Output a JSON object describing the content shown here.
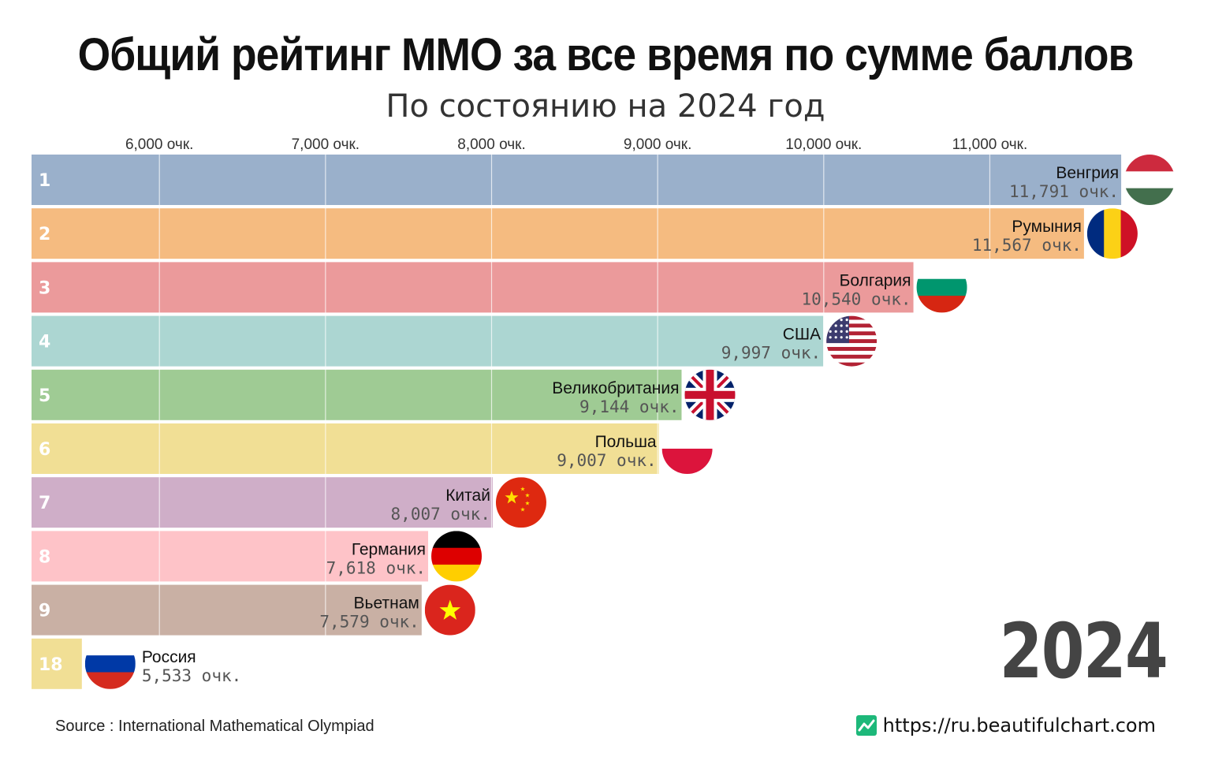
{
  "chart_data": {
    "type": "bar",
    "orientation": "horizontal",
    "title": "Общий рейтинг ММО за все время по сумме баллов",
    "subtitle": "По состоянию на 2024 год",
    "year": "2024",
    "unit": "очк.",
    "xlim": [
      5230,
      11990
    ],
    "ticks": [
      {
        "value": 6000,
        "label": "6,000 очк."
      },
      {
        "value": 7000,
        "label": "7,000 очк."
      },
      {
        "value": 8000,
        "label": "8,000 очк."
      },
      {
        "value": 9000,
        "label": "9,000 очк."
      },
      {
        "value": 10000,
        "label": "10,000 очк."
      },
      {
        "value": 11000,
        "label": "11,000 очк."
      }
    ],
    "bars": [
      {
        "rank": "1",
        "name": "Венгрия",
        "value": 11791,
        "value_label": "11,791 очк.",
        "color": "#9ab0cb",
        "flag": "hungary-flag-icon"
      },
      {
        "rank": "2",
        "name": "Румыния",
        "value": 11567,
        "value_label": "11,567 очк.",
        "color": "#f5bb80",
        "flag": "romania-flag-icon"
      },
      {
        "rank": "3",
        "name": "Болгария",
        "value": 10540,
        "value_label": "10,540 очк.",
        "color": "#eb9a9b",
        "flag": "bulgaria-flag-icon"
      },
      {
        "rank": "4",
        "name": "США",
        "value": 9997,
        "value_label": "9,997 очк.",
        "color": "#acd6d2",
        "flag": "usa-flag-icon"
      },
      {
        "rank": "5",
        "name": "Великобритания",
        "value": 9144,
        "value_label": "9,144 очк.",
        "color": "#9fcb94",
        "flag": "uk-flag-icon"
      },
      {
        "rank": "6",
        "name": "Польша",
        "value": 9007,
        "value_label": "9,007 очк.",
        "color": "#f1df95",
        "flag": "poland-flag-icon"
      },
      {
        "rank": "7",
        "name": "Китай",
        "value": 8007,
        "value_label": "8,007 очк.",
        "color": "#cfaec8",
        "flag": "china-flag-icon"
      },
      {
        "rank": "8",
        "name": "Германия",
        "value": 7618,
        "value_label": "7,618 очк.",
        "color": "#fec3c8",
        "flag": "germany-flag-icon"
      },
      {
        "rank": "9",
        "name": "Вьетнам",
        "value": 7579,
        "value_label": "7,579 очк.",
        "color": "#c9b0a4",
        "flag": "vietnam-flag-icon"
      },
      {
        "rank": "18",
        "name": "Россия",
        "value": 5533,
        "value_label": "5,533 очк.",
        "color": "#f1df95",
        "flag": "russia-flag-icon"
      }
    ]
  },
  "footer": {
    "source": "Source : International Mathematical Olympiad",
    "brand_url": "https://ru.beautifulchart.com",
    "brand_color": "#1db87a"
  }
}
